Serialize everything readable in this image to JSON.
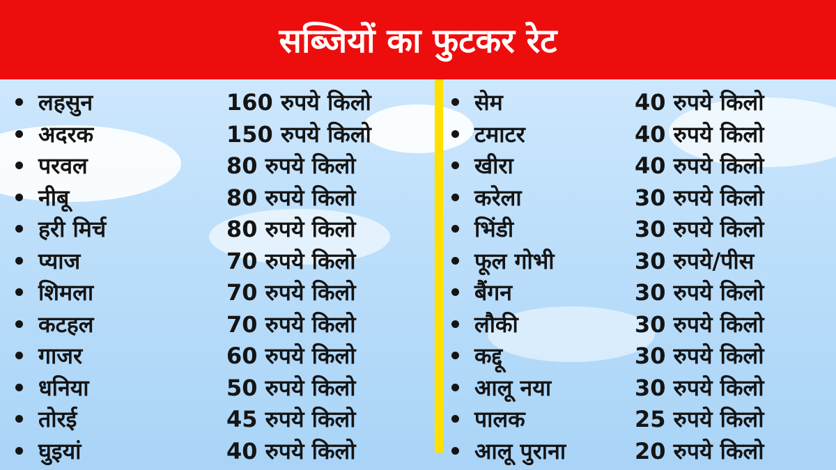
{
  "title": "सब्जियों का फुटकर रेट",
  "colors": {
    "header_bg": "#ee0d0d",
    "divider": "#ffe000",
    "text": "#141414"
  },
  "left_items": [
    {
      "name": "लहसुन",
      "price": "160 रुपये किलो"
    },
    {
      "name": "अदरक",
      "price": "150 रुपये किलो"
    },
    {
      "name": "परवल",
      "price": "80 रुपये किलो"
    },
    {
      "name": "नीबू",
      "price": "80 रुपये किलो"
    },
    {
      "name": "हरी मिर्च",
      "price": "80 रुपये किलो"
    },
    {
      "name": "प्याज",
      "price": "70 रुपये किलो"
    },
    {
      "name": "शिमला",
      "price": "70 रुपये किलो"
    },
    {
      "name": "कटहल",
      "price": "70 रुपये किलो"
    },
    {
      "name": "गाजर",
      "price": "60 रुपये किलो"
    },
    {
      "name": "धनिया",
      "price": "50 रुपये किलो"
    },
    {
      "name": "तोरई",
      "price": "45 रुपये किलो"
    },
    {
      "name": "घुइयां",
      "price": "40 रुपये किलो"
    }
  ],
  "right_items": [
    {
      "name": "सेम",
      "price": "40 रुपये किलो"
    },
    {
      "name": "टमाटर",
      "price": "40 रुपये किलो"
    },
    {
      "name": "खीरा",
      "price": "40 रुपये किलो"
    },
    {
      "name": "करेला",
      "price": "30 रुपये किलो"
    },
    {
      "name": "भिंडी",
      "price": "30 रुपये किलो"
    },
    {
      "name": "फूल गोभी",
      "price": "30 रुपये/पीस"
    },
    {
      "name": "बैंगन",
      "price": "30 रुपये किलो"
    },
    {
      "name": "लौकी",
      "price": "30 रुपये किलो"
    },
    {
      "name": "कद्दू",
      "price": "30 रुपये किलो"
    },
    {
      "name": "आलू नया",
      "price": "30 रुपये किलो"
    },
    {
      "name": "पालक",
      "price": "25 रुपये किलो"
    },
    {
      "name": "आलू पुराना",
      "price": "20 रुपये किलो"
    }
  ]
}
